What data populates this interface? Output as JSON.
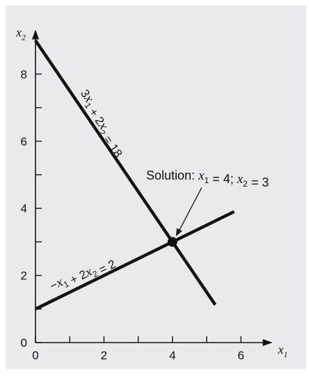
{
  "chart_data": {
    "type": "line",
    "title": "",
    "xlabel": "x1",
    "ylabel": "x2",
    "xlim": [
      0,
      6.8
    ],
    "ylim": [
      0,
      9.2
    ],
    "x_ticks_labeled": [
      "0",
      "2",
      "4",
      "6"
    ],
    "x_ticks_minor": [
      1,
      3,
      5
    ],
    "y_ticks_labeled": [
      "0",
      "2",
      "4",
      "6",
      "8"
    ],
    "y_ticks_minor": [
      1,
      3,
      5,
      7
    ],
    "series": [
      {
        "name": "3x1 + 2x2 = 18",
        "equation": "3x1 + 2x2 = 18",
        "x": [
          0,
          5.25
        ],
        "y": [
          9,
          1.125
        ]
      },
      {
        "name": "−x1 + 2x2 = 2",
        "equation": "−x1 + 2x2 = 2",
        "x": [
          0,
          5.8
        ],
        "y": [
          1,
          3.9
        ]
      }
    ],
    "solution_point": {
      "x": 4,
      "y": 3
    },
    "annotation": "Solution: x1 = 4; x2 = 3",
    "background": "#e9eaee",
    "line_color": "#111111"
  }
}
